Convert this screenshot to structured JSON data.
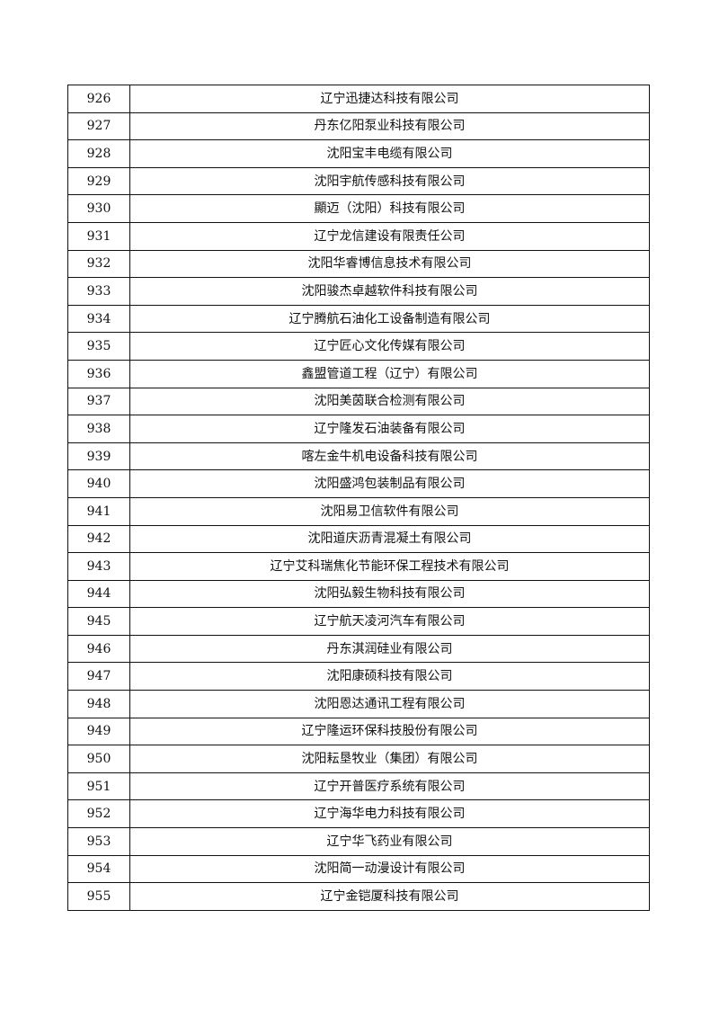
{
  "table": {
    "rows": [
      {
        "no": "926",
        "name": "辽宁迅捷达科技有限公司"
      },
      {
        "no": "927",
        "name": "丹东亿阳泵业科技有限公司"
      },
      {
        "no": "928",
        "name": "沈阳宝丰电缆有限公司"
      },
      {
        "no": "929",
        "name": "沈阳宇航传感科技有限公司"
      },
      {
        "no": "930",
        "name": "顯迈（沈阳）科技有限公司"
      },
      {
        "no": "931",
        "name": "辽宁龙信建设有限责任公司"
      },
      {
        "no": "932",
        "name": "沈阳华睿博信息技术有限公司"
      },
      {
        "no": "933",
        "name": "沈阳骏杰卓越软件科技有限公司"
      },
      {
        "no": "934",
        "name": "辽宁腾航石油化工设备制造有限公司"
      },
      {
        "no": "935",
        "name": "辽宁匠心文化传媒有限公司"
      },
      {
        "no": "936",
        "name": "鑫盟管道工程（辽宁）有限公司"
      },
      {
        "no": "937",
        "name": "沈阳美茵联合检测有限公司"
      },
      {
        "no": "938",
        "name": "辽宁隆发石油装备有限公司"
      },
      {
        "no": "939",
        "name": "喀左金牛机电设备科技有限公司"
      },
      {
        "no": "940",
        "name": "沈阳盛鸿包装制品有限公司"
      },
      {
        "no": "941",
        "name": "沈阳易卫信软件有限公司"
      },
      {
        "no": "942",
        "name": "沈阳道庆沥青混凝土有限公司"
      },
      {
        "no": "943",
        "name": "辽宁艾科瑞焦化节能环保工程技术有限公司"
      },
      {
        "no": "944",
        "name": "沈阳弘毅生物科技有限公司"
      },
      {
        "no": "945",
        "name": "辽宁航天凌河汽车有限公司"
      },
      {
        "no": "946",
        "name": "丹东淇润硅业有限公司"
      },
      {
        "no": "947",
        "name": "沈阳康硕科技有限公司"
      },
      {
        "no": "948",
        "name": "沈阳恩达通讯工程有限公司"
      },
      {
        "no": "949",
        "name": "辽宁隆运环保科技股份有限公司"
      },
      {
        "no": "950",
        "name": "沈阳耘垦牧业（集团）有限公司"
      },
      {
        "no": "951",
        "name": "辽宁开普医疗系统有限公司"
      },
      {
        "no": "952",
        "name": "辽宁海华电力科技有限公司"
      },
      {
        "no": "953",
        "name": "辽宁华飞药业有限公司"
      },
      {
        "no": "954",
        "name": "沈阳简一动漫设计有限公司"
      },
      {
        "no": "955",
        "name": "辽宁金铠厦科技有限公司"
      }
    ]
  }
}
